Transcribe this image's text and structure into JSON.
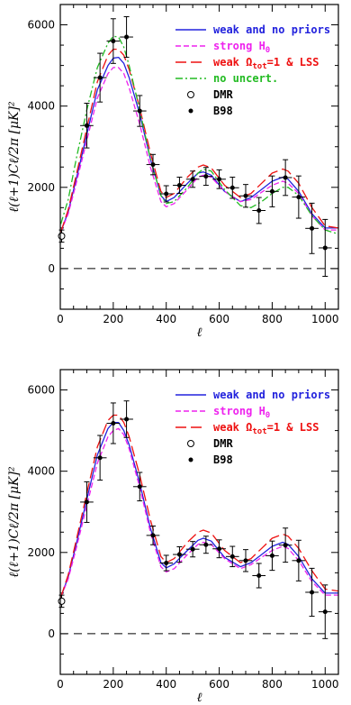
{
  "colors": {
    "blue": "#2222dd",
    "magenta": "#ee22ee",
    "red": "#ee1111",
    "green": "#22bb22",
    "black": "#000000"
  },
  "chart_data": [
    {
      "type": "line",
      "xlabel": "ℓ",
      "ylabel": "ℓ(ℓ+1)Cℓ/2π [μK]²",
      "xlim": [
        0,
        1050
      ],
      "ylim": [
        -1000,
        6500
      ],
      "xticks": [
        0,
        200,
        400,
        600,
        800,
        1000
      ],
      "yticks": [
        0,
        2000,
        4000,
        6000
      ],
      "legend_position": "top-right",
      "series": [
        {
          "name": "weak and no priors",
          "legend_label": "weak and no priors",
          "color_key": "blue",
          "dash": "solid",
          "x": [
            2,
            30,
            60,
            100,
            140,
            180,
            200,
            220,
            240,
            260,
            300,
            340,
            380,
            400,
            430,
            480,
            520,
            540,
            570,
            620,
            680,
            720,
            760,
            800,
            840,
            860,
            900,
            950,
            1000,
            1050
          ],
          "y": [
            900,
            1400,
            2200,
            3300,
            4400,
            5000,
            5180,
            5200,
            5050,
            4700,
            3800,
            2700,
            1800,
            1650,
            1750,
            2100,
            2350,
            2380,
            2300,
            1900,
            1650,
            1750,
            1950,
            2150,
            2250,
            2200,
            1900,
            1350,
            1000,
            1000
          ]
        },
        {
          "name": "strong H0",
          "legend_label": "strong H",
          "legend_sub": "0",
          "color_key": "magenta",
          "dash": "6,3",
          "x": [
            2,
            30,
            60,
            100,
            140,
            180,
            200,
            220,
            240,
            260,
            300,
            340,
            380,
            400,
            430,
            480,
            520,
            540,
            570,
            620,
            680,
            720,
            760,
            800,
            840,
            860,
            900,
            950,
            1000,
            1050
          ],
          "y": [
            900,
            1350,
            2100,
            3150,
            4200,
            4800,
            4950,
            4950,
            4800,
            4450,
            3550,
            2500,
            1650,
            1520,
            1600,
            1950,
            2250,
            2300,
            2250,
            1900,
            1650,
            1700,
            1880,
            2050,
            2150,
            2100,
            1850,
            1300,
            950,
            950
          ]
        },
        {
          "name": "weak Ωtot=1 & LSS",
          "legend_label": "weak Ω",
          "legend_sub": "tot",
          "legend_suffix": "=1 & LSS",
          "color_key": "red",
          "dash": "12,5",
          "x": [
            2,
            30,
            60,
            100,
            140,
            180,
            200,
            220,
            240,
            260,
            300,
            340,
            380,
            400,
            430,
            480,
            520,
            540,
            570,
            620,
            680,
            720,
            760,
            800,
            840,
            860,
            900,
            950,
            1000,
            1050
          ],
          "y": [
            900,
            1450,
            2300,
            3450,
            4600,
            5250,
            5400,
            5400,
            5250,
            4900,
            3950,
            2850,
            1900,
            1750,
            1850,
            2250,
            2500,
            2550,
            2480,
            2050,
            1750,
            1850,
            2100,
            2350,
            2450,
            2400,
            2100,
            1500,
            1050,
            1000
          ]
        },
        {
          "name": "no uncert.",
          "legend_label": "no uncert.",
          "color_key": "green",
          "dash": "8,3,2,3",
          "x": [
            2,
            30,
            60,
            100,
            140,
            180,
            200,
            220,
            240,
            260,
            300,
            340,
            380,
            400,
            430,
            480,
            520,
            540,
            570,
            620,
            680,
            720,
            760,
            800,
            840,
            860,
            900,
            950,
            1000,
            1050
          ],
          "y": [
            1100,
            1700,
            2700,
            3900,
            4950,
            5550,
            5720,
            5700,
            5450,
            5000,
            3900,
            2700,
            1800,
            1600,
            1650,
            2000,
            2350,
            2450,
            2400,
            1950,
            1550,
            1500,
            1650,
            1850,
            2000,
            2000,
            1800,
            1300,
            950,
            850
          ]
        }
      ],
      "markers": [
        {
          "label": "DMR",
          "style": "open",
          "points": [
            {
              "x": 5,
              "y": 800,
              "yerr": 150,
              "xerr": 5
            }
          ]
        },
        {
          "label": "B98",
          "style": "filled",
          "points": [
            {
              "x": 100,
              "y": 3520,
              "xerr": 25,
              "yerr": 550
            },
            {
              "x": 150,
              "y": 4700,
              "xerr": 25,
              "yerr": 600
            },
            {
              "x": 200,
              "y": 5600,
              "xerr": 25,
              "yerr": 550
            },
            {
              "x": 250,
              "y": 5700,
              "xerr": 25,
              "yerr": 500
            },
            {
              "x": 300,
              "y": 3880,
              "xerr": 25,
              "yerr": 380
            },
            {
              "x": 350,
              "y": 2560,
              "xerr": 25,
              "yerr": 250
            },
            {
              "x": 400,
              "y": 1840,
              "xerr": 25,
              "yerr": 200
            },
            {
              "x": 450,
              "y": 2050,
              "xerr": 25,
              "yerr": 200
            },
            {
              "x": 500,
              "y": 2200,
              "xerr": 25,
              "yerr": 200
            },
            {
              "x": 550,
              "y": 2270,
              "xerr": 25,
              "yerr": 220
            },
            {
              "x": 600,
              "y": 2200,
              "xerr": 25,
              "yerr": 230
            },
            {
              "x": 650,
              "y": 1990,
              "xerr": 25,
              "yerr": 260
            },
            {
              "x": 700,
              "y": 1790,
              "xerr": 25,
              "yerr": 280
            },
            {
              "x": 750,
              "y": 1430,
              "xerr": 25,
              "yerr": 320
            },
            {
              "x": 800,
              "y": 1900,
              "xerr": 25,
              "yerr": 380
            },
            {
              "x": 850,
              "y": 2240,
              "xerr": 25,
              "yerr": 440
            },
            {
              "x": 900,
              "y": 1760,
              "xerr": 25,
              "yerr": 520
            },
            {
              "x": 950,
              "y": 990,
              "xerr": 25,
              "yerr": 620
            },
            {
              "x": 1000,
              "y": 510,
              "xerr": 25,
              "yerr": 700
            }
          ]
        }
      ]
    },
    {
      "type": "line",
      "xlabel": "ℓ",
      "ylabel": "ℓ(ℓ+1)Cℓ/2π [μK]²",
      "xlim": [
        0,
        1050
      ],
      "ylim": [
        -1000,
        6500
      ],
      "xticks": [
        0,
        200,
        400,
        600,
        800,
        1000
      ],
      "yticks": [
        0,
        2000,
        4000,
        6000
      ],
      "legend_position": "top-right",
      "series": [
        {
          "name": "weak and no priors",
          "legend_label": "weak and no priors",
          "color_key": "blue",
          "dash": "solid",
          "x": [
            2,
            30,
            60,
            100,
            140,
            180,
            200,
            220,
            240,
            260,
            300,
            340,
            380,
            400,
            430,
            480,
            520,
            540,
            570,
            620,
            680,
            720,
            760,
            800,
            840,
            860,
            900,
            950,
            1000,
            1050
          ],
          "y": [
            900,
            1400,
            2200,
            3300,
            4400,
            5050,
            5200,
            5200,
            5000,
            4650,
            3700,
            2600,
            1750,
            1620,
            1720,
            2050,
            2300,
            2350,
            2280,
            1880,
            1650,
            1750,
            1950,
            2150,
            2250,
            2200,
            1900,
            1350,
            1000,
            1000
          ]
        },
        {
          "name": "strong H0",
          "legend_label": "strong H",
          "legend_sub": "0",
          "color_key": "magenta",
          "dash": "6,3",
          "x": [
            2,
            30,
            60,
            100,
            140,
            180,
            200,
            220,
            240,
            260,
            300,
            340,
            380,
            400,
            430,
            480,
            520,
            540,
            570,
            620,
            680,
            720,
            760,
            800,
            840,
            860,
            900,
            950,
            1000,
            1050
          ],
          "y": [
            900,
            1350,
            2100,
            3150,
            4200,
            4850,
            5000,
            5050,
            4900,
            4550,
            3600,
            2500,
            1650,
            1520,
            1600,
            1950,
            2200,
            2250,
            2200,
            1850,
            1600,
            1700,
            1880,
            2050,
            2150,
            2100,
            1800,
            1280,
            950,
            950
          ]
        },
        {
          "name": "weak Ωtot=1 & LSS",
          "legend_label": "weak Ω",
          "legend_sub": "tot",
          "legend_suffix": "=1 & LSS",
          "color_key": "red",
          "dash": "12,5",
          "x": [
            2,
            30,
            60,
            100,
            140,
            180,
            200,
            220,
            240,
            260,
            300,
            340,
            380,
            400,
            430,
            480,
            520,
            540,
            570,
            620,
            680,
            720,
            760,
            800,
            840,
            860,
            900,
            950,
            1000,
            1050
          ],
          "y": [
            900,
            1450,
            2300,
            3450,
            4600,
            5250,
            5380,
            5380,
            5200,
            4850,
            3900,
            2800,
            1900,
            1750,
            1850,
            2250,
            2500,
            2550,
            2480,
            2050,
            1750,
            1850,
            2100,
            2350,
            2450,
            2400,
            2100,
            1550,
            1100,
            1050
          ]
        }
      ],
      "markers": [
        {
          "label": "DMR",
          "style": "open",
          "points": [
            {
              "x": 5,
              "y": 800,
              "yerr": 150,
              "xerr": 5
            }
          ]
        },
        {
          "label": "B98",
          "style": "filled",
          "points": [
            {
              "x": 100,
              "y": 3240,
              "xerr": 25,
              "yerr": 500
            },
            {
              "x": 150,
              "y": 4330,
              "xerr": 25,
              "yerr": 550
            },
            {
              "x": 200,
              "y": 5180,
              "xerr": 25,
              "yerr": 500
            },
            {
              "x": 250,
              "y": 5280,
              "xerr": 25,
              "yerr": 450
            },
            {
              "x": 300,
              "y": 3620,
              "xerr": 25,
              "yerr": 350
            },
            {
              "x": 350,
              "y": 2420,
              "xerr": 25,
              "yerr": 230
            },
            {
              "x": 400,
              "y": 1740,
              "xerr": 25,
              "yerr": 190
            },
            {
              "x": 450,
              "y": 1950,
              "xerr": 25,
              "yerr": 190
            },
            {
              "x": 500,
              "y": 2080,
              "xerr": 25,
              "yerr": 190
            },
            {
              "x": 550,
              "y": 2190,
              "xerr": 25,
              "yerr": 210
            },
            {
              "x": 600,
              "y": 2090,
              "xerr": 25,
              "yerr": 220
            },
            {
              "x": 650,
              "y": 1900,
              "xerr": 25,
              "yerr": 250
            },
            {
              "x": 700,
              "y": 1800,
              "xerr": 25,
              "yerr": 270
            },
            {
              "x": 750,
              "y": 1430,
              "xerr": 25,
              "yerr": 300
            },
            {
              "x": 800,
              "y": 1920,
              "xerr": 25,
              "yerr": 360
            },
            {
              "x": 850,
              "y": 2180,
              "xerr": 25,
              "yerr": 420
            },
            {
              "x": 900,
              "y": 1800,
              "xerr": 25,
              "yerr": 500
            },
            {
              "x": 950,
              "y": 1020,
              "xerr": 25,
              "yerr": 590
            },
            {
              "x": 1000,
              "y": 540,
              "xerr": 25,
              "yerr": 660
            }
          ]
        }
      ]
    }
  ]
}
